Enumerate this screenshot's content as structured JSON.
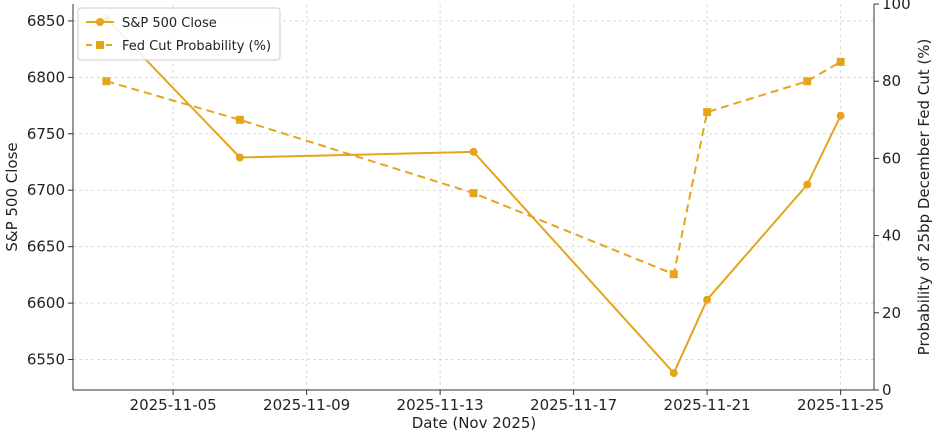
{
  "chart_data": {
    "type": "line",
    "title": "",
    "xlabel": "Date (Nov 2025)",
    "ylabel_left": "S&P 500 Close",
    "ylabel_right": "Probability of 25bp December Fed Cut (%)",
    "x_ticks": [
      "2025-11-05",
      "2025-11-09",
      "2025-11-13",
      "2025-11-17",
      "2025-11-21",
      "2025-11-25"
    ],
    "y_left_ticks": [
      6550,
      6600,
      6650,
      6700,
      6750,
      6800,
      6850
    ],
    "y_right_ticks": [
      0,
      20,
      40,
      60,
      80,
      100
    ],
    "y_left_range": [
      6523,
      6865
    ],
    "y_right_range": [
      0,
      100
    ],
    "x_range": [
      "2025-11-02",
      "2025-11-26"
    ],
    "grid": true,
    "legend_position": "top-left",
    "series": [
      {
        "name": "S&P 500 Close",
        "axis": "left",
        "style": "solid",
        "marker": "circle",
        "color": "#e5a51b",
        "x": [
          "2025-11-03",
          "2025-11-07",
          "2025-11-14",
          "2025-11-20",
          "2025-11-21",
          "2025-11-24",
          "2025-11-25"
        ],
        "values": [
          6852,
          6729,
          6734,
          6538,
          6603,
          6705,
          6766
        ]
      },
      {
        "name": "Fed Cut Probability (%)",
        "axis": "right",
        "style": "dashed",
        "marker": "square",
        "color": "#e5a51b",
        "x": [
          "2025-11-03",
          "2025-11-07",
          "2025-11-14",
          "2025-11-20",
          "2025-11-21",
          "2025-11-24",
          "2025-11-25"
        ],
        "values": [
          80,
          70,
          51,
          30,
          72,
          80,
          85
        ]
      }
    ]
  }
}
